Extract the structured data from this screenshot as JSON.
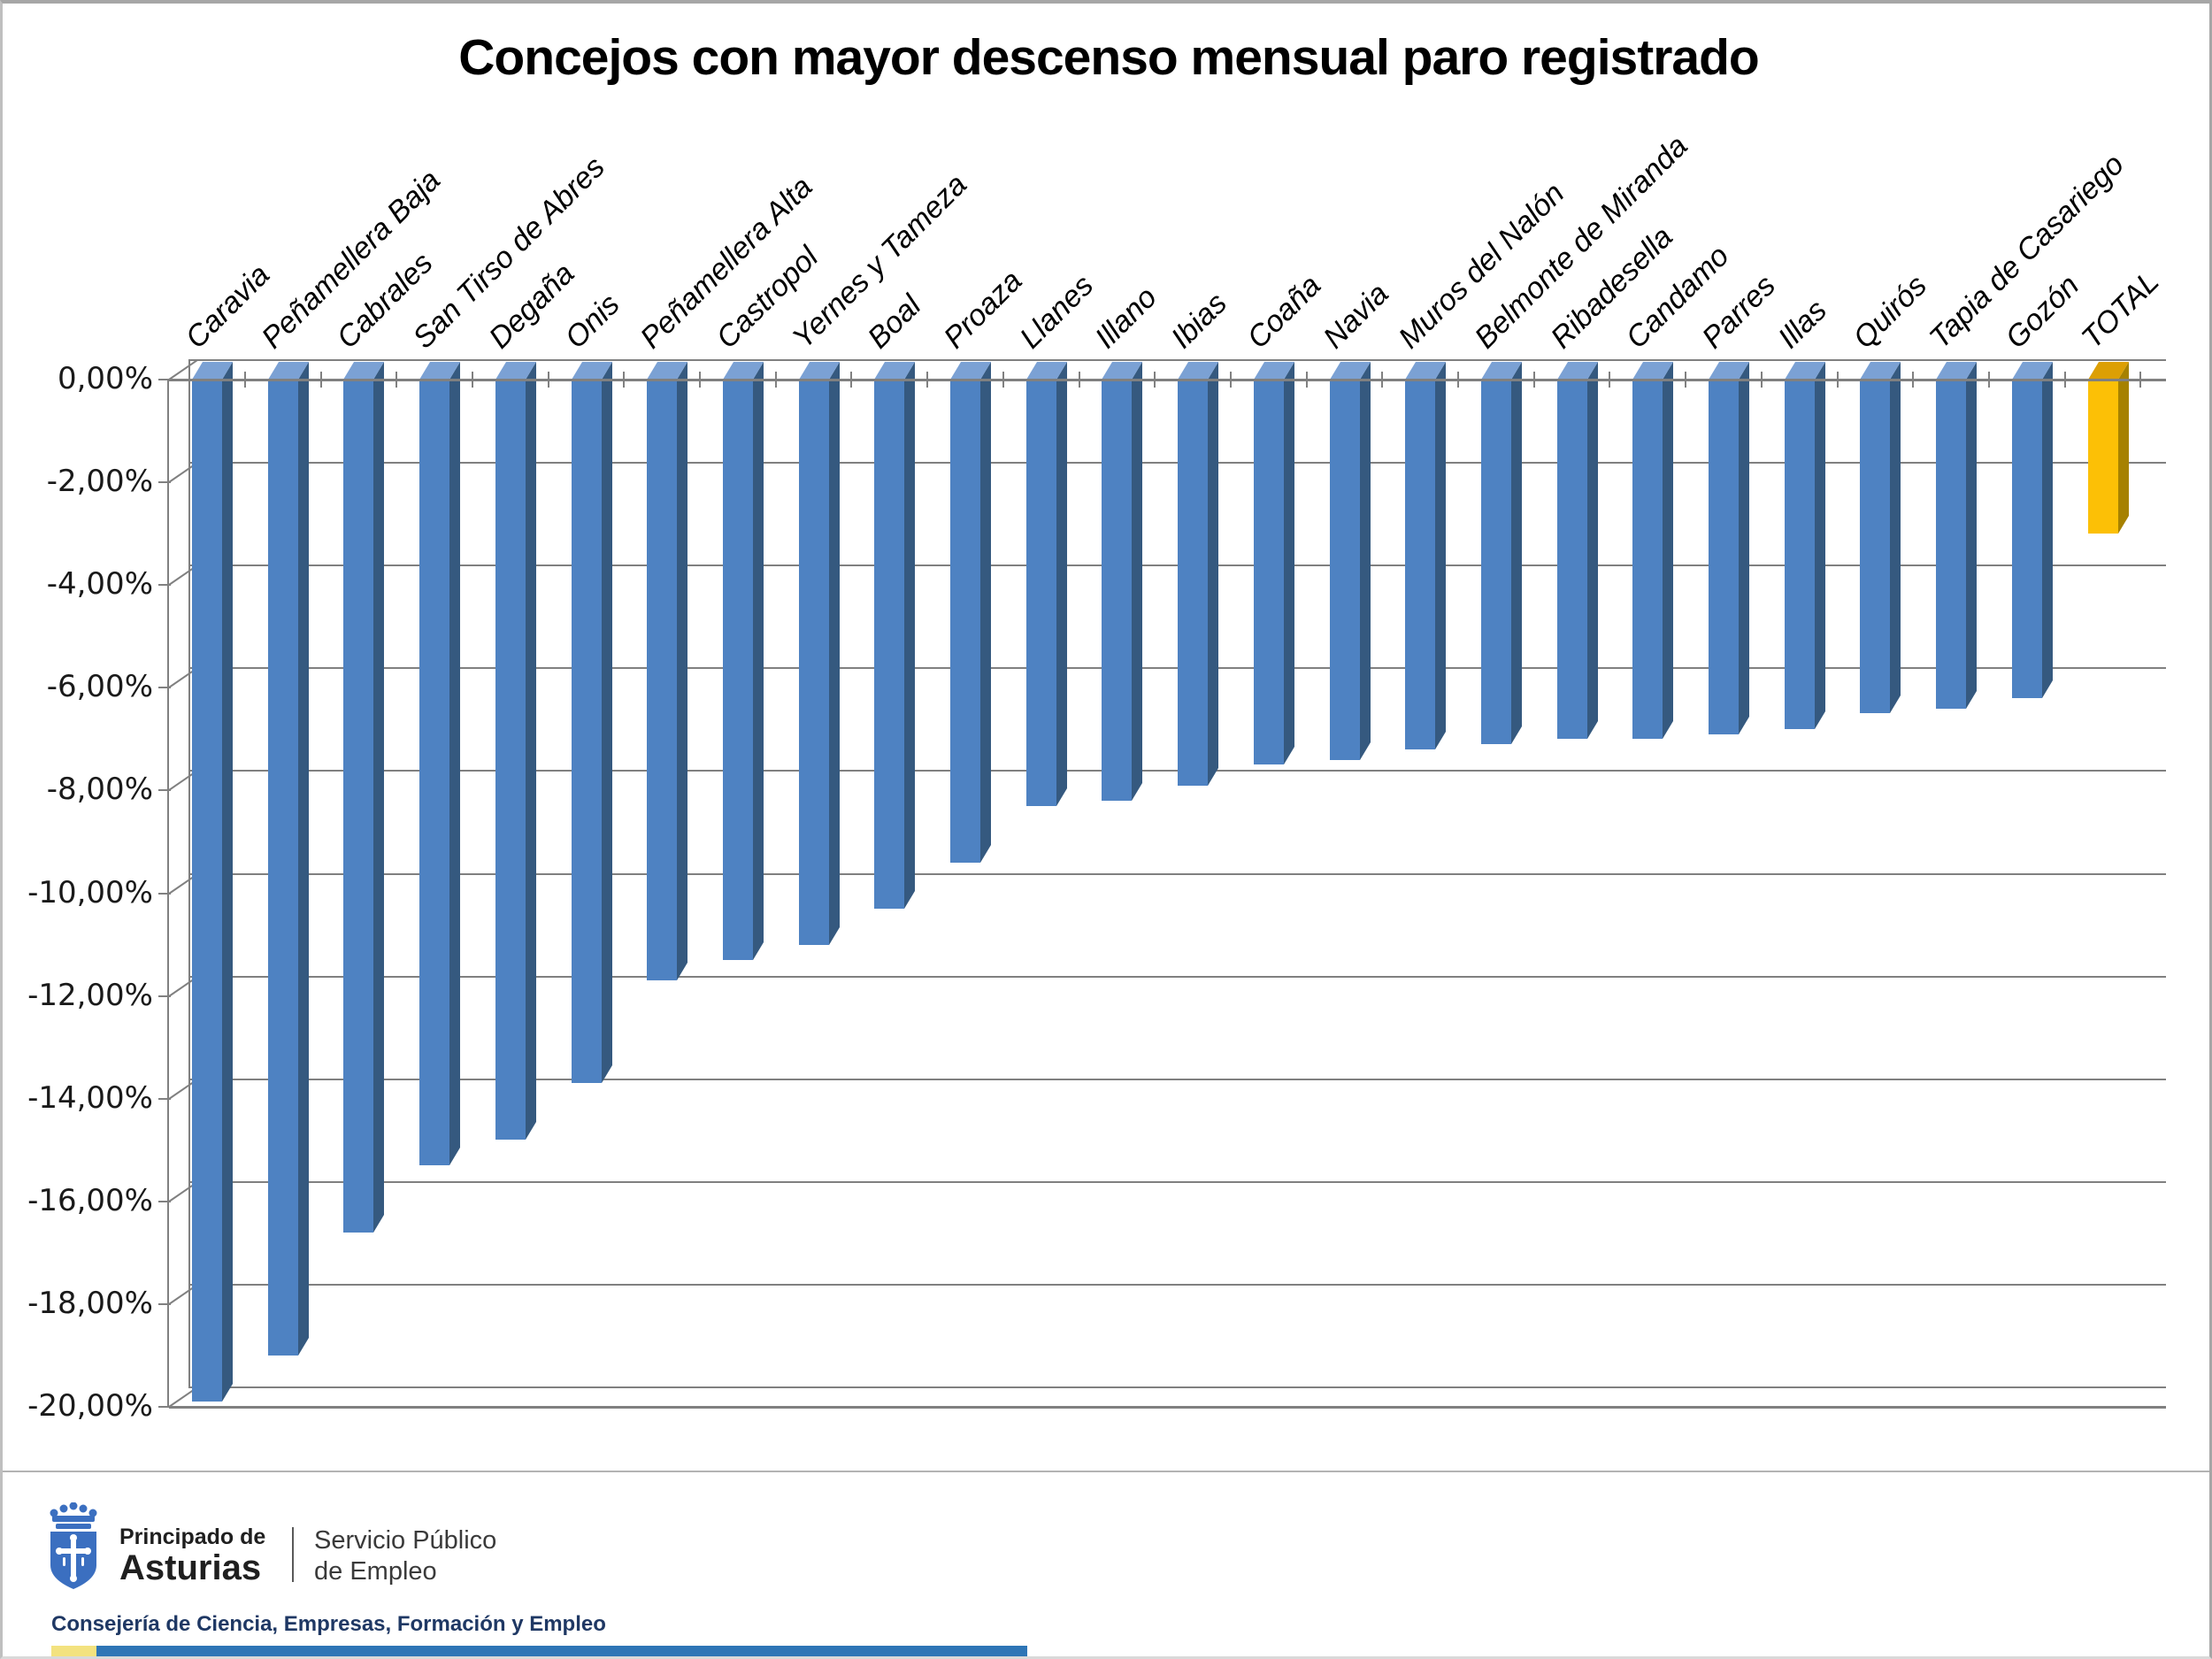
{
  "title": "Concejos con mayor descenso mensual paro registrado",
  "chart_data": {
    "type": "bar",
    "style": "3d-columns-negative",
    "title": "Concejos con mayor descenso mensual paro registrado",
    "xlabel": "",
    "ylabel": "",
    "ylim": [
      0,
      -20
    ],
    "grid": true,
    "legend_position": "none",
    "y_tick_labels": [
      "0,00%",
      "-2,00%",
      "-4,00%",
      "-6,00%",
      "-8,00%",
      "-10,00%",
      "-12,00%",
      "-14,00%",
      "-16,00%",
      "-18,00%",
      "-20,00%"
    ],
    "categories": [
      "Caravia",
      "Peñamellera Baja",
      "Cabrales",
      "San Tirso de Abres",
      "Degaña",
      "Onis",
      "Peñamellera Alta",
      "Castropol",
      "Yernes y Tameza",
      "Boal",
      "Proaza",
      "Llanes",
      "Illano",
      "Ibias",
      "Coaña",
      "Navia",
      "Muros del Nalón",
      "Belmonte de Miranda",
      "Ribadesella",
      "Candamo",
      "Parres",
      "Illas",
      "Quirós",
      "Tapia de Casariego",
      "Gozón",
      "TOTAL"
    ],
    "values": [
      -19.9,
      -19.0,
      -16.6,
      -15.3,
      -14.8,
      -13.7,
      -11.7,
      -11.3,
      -11.0,
      -10.3,
      -9.4,
      -8.3,
      -8.2,
      -7.9,
      -7.5,
      -7.4,
      -7.2,
      -7.1,
      -7.0,
      -7.0,
      -6.9,
      -6.8,
      -6.5,
      -6.4,
      -6.2,
      -3.0
    ],
    "series_color": "#4e82c2",
    "series_color_side": "#35597f",
    "series_color_top": "#7ba1d4",
    "highlight_category": "TOTAL",
    "highlight_color": "#fcc006",
    "highlight_color_side": "#a68100",
    "highlight_color_top": "#dc9f04",
    "gridline_color": "#808080"
  },
  "footer": {
    "brand_top": "Principado de",
    "brand_name": "Asturias",
    "service_line1": "Servicio Público",
    "service_line2": "de Empleo",
    "consejeria": "Consejería de Ciencia, Empresas, Formación y Empleo",
    "coat_icon": "asturias-coat-of-arms-icon",
    "bar_yellow": "#f3e27f",
    "bar_blue": "#2e75b6",
    "shield_blue": "#3b6fc0"
  }
}
